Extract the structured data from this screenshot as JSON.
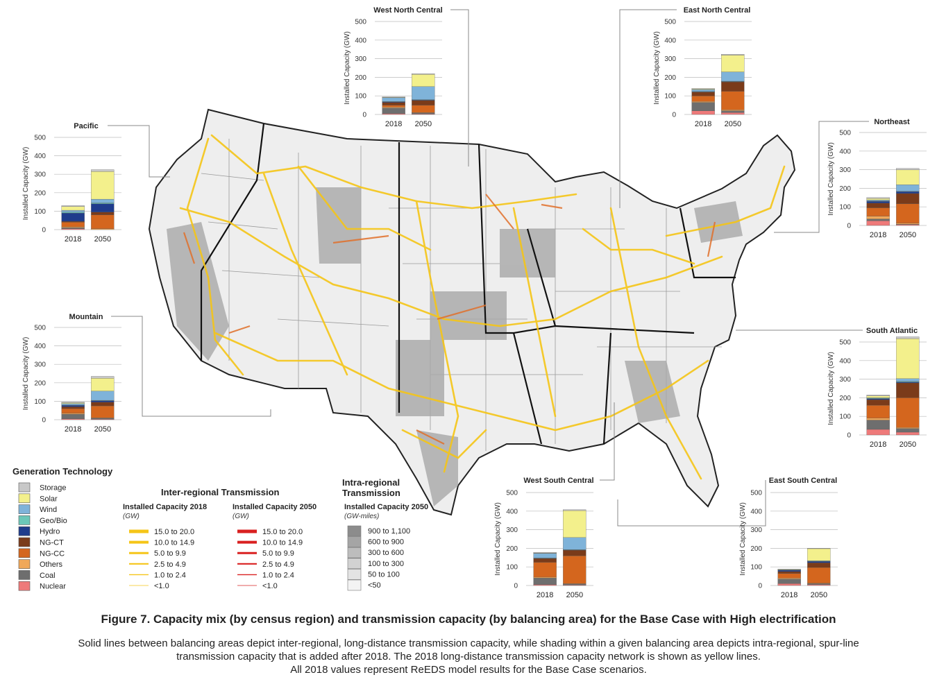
{
  "figure": {
    "title": "Figure 7. Capacity mix (by census region) and transmission capacity (by balancing area) for the Base Case with High electrification",
    "caption_lines": [
      "Solid lines between balancing areas depict inter-regional, long-distance transmission capacity, while shading within a given balancing area depicts intra-regional, spur-line",
      "transmission capacity that is added after 2018. The 2018 long-distance transmission capacity network is shown as yellow lines.",
      "All 2018 values represent ReEDS model results for the Base Case scenarios."
    ]
  },
  "colors": {
    "Storage": "#c8c8c8",
    "Solar": "#f3f08c",
    "Wind": "#7fb3d9",
    "Geo/Bio": "#6cc7b8",
    "Hydro": "#1f3c8c",
    "NG-CT": "#7a3b1a",
    "NG-CC": "#d4661e",
    "Others": "#f0a85a",
    "Coal": "#6e6e6e",
    "Nuclear": "#ee7a7a",
    "line2018": "#f5c518",
    "line2050": "#d92020"
  },
  "legend": {
    "title": "Generation Technology",
    "items": [
      "Storage",
      "Solar",
      "Wind",
      "Geo/Bio",
      "Hydro",
      "NG-CT",
      "NG-CC",
      "Others",
      "Coal",
      "Nuclear"
    ]
  },
  "inter_regional": {
    "title": "Inter-regional Transmission",
    "col2018": {
      "title": "Installed Capacity 2018",
      "unit": "(GW)"
    },
    "col2050": {
      "title": "Installed Capacity 2050",
      "unit": "(GW)"
    },
    "bins": [
      "15.0 to 20.0",
      "10.0 to 14.9",
      "5.0 to 9.9",
      "2.5 to 4.9",
      "1.0 to 2.4",
      "<1.0"
    ]
  },
  "intra_regional": {
    "title_line1": "Intra-regional",
    "title_line2": "Transmission",
    "subtitle": "Installed Capacity 2050",
    "unit": "(GW-miles)",
    "bins": [
      "900 to 1,100",
      "600 to 900",
      "300 to 600",
      "100 to 300",
      "50 to 100",
      "<50"
    ]
  },
  "chart_data": [
    {
      "type": "bar",
      "title": "Pacific",
      "ylabel": "Installed Capacity (GW)",
      "ylim": [
        0,
        500
      ],
      "yticks": [
        0,
        100,
        200,
        300,
        400,
        500
      ],
      "categories": [
        "2018",
        "2050"
      ],
      "series": [
        {
          "name": "Nuclear",
          "values": [
            5,
            0
          ]
        },
        {
          "name": "Coal",
          "values": [
            5,
            0
          ]
        },
        {
          "name": "Others",
          "values": [
            5,
            5
          ]
        },
        {
          "name": "NG-CC",
          "values": [
            25,
            75
          ]
        },
        {
          "name": "NG-CT",
          "values": [
            5,
            15
          ]
        },
        {
          "name": "Hydro",
          "values": [
            45,
            45
          ]
        },
        {
          "name": "Geo/Bio",
          "values": [
            5,
            5
          ]
        },
        {
          "name": "Wind",
          "values": [
            10,
            20
          ]
        },
        {
          "name": "Solar",
          "values": [
            20,
            150
          ]
        },
        {
          "name": "Storage",
          "values": [
            5,
            10
          ]
        }
      ]
    },
    {
      "type": "bar",
      "title": "Mountain",
      "ylabel": "Installed Capacity (GW)",
      "ylim": [
        0,
        500
      ],
      "yticks": [
        0,
        100,
        200,
        300,
        400,
        500
      ],
      "categories": [
        "2018",
        "2050"
      ],
      "series": [
        {
          "name": "Nuclear",
          "values": [
            5,
            3
          ]
        },
        {
          "name": "Coal",
          "values": [
            25,
            5
          ]
        },
        {
          "name": "Others",
          "values": [
            5,
            2
          ]
        },
        {
          "name": "NG-CC",
          "values": [
            25,
            65
          ]
        },
        {
          "name": "NG-CT",
          "values": [
            10,
            20
          ]
        },
        {
          "name": "Hydro",
          "values": [
            8,
            8
          ]
        },
        {
          "name": "Geo/Bio",
          "values": [
            2,
            2
          ]
        },
        {
          "name": "Wind",
          "values": [
            7,
            50
          ]
        },
        {
          "name": "Solar",
          "values": [
            5,
            70
          ]
        },
        {
          "name": "Storage",
          "values": [
            3,
            10
          ]
        }
      ]
    },
    {
      "type": "bar",
      "title": "West North Central",
      "ylabel": "Installed Capacity (GW)",
      "ylim": [
        0,
        500
      ],
      "yticks": [
        0,
        100,
        200,
        300,
        400,
        500
      ],
      "categories": [
        "2018",
        "2050"
      ],
      "series": [
        {
          "name": "Nuclear",
          "values": [
            5,
            3
          ]
        },
        {
          "name": "Coal",
          "values": [
            30,
            5
          ]
        },
        {
          "name": "Others",
          "values": [
            5,
            2
          ]
        },
        {
          "name": "NG-CC",
          "values": [
            10,
            40
          ]
        },
        {
          "name": "NG-CT",
          "values": [
            15,
            25
          ]
        },
        {
          "name": "Hydro",
          "values": [
            3,
            3
          ]
        },
        {
          "name": "Geo/Bio",
          "values": [
            2,
            2
          ]
        },
        {
          "name": "Wind",
          "values": [
            20,
            70
          ]
        },
        {
          "name": "Solar",
          "values": [
            2,
            65
          ]
        },
        {
          "name": "Storage",
          "values": [
            3,
            5
          ]
        }
      ]
    },
    {
      "type": "bar",
      "title": "East North Central",
      "ylabel": "Installed Capacity (GW)",
      "ylim": [
        0,
        500
      ],
      "yticks": [
        0,
        100,
        200,
        300,
        400,
        500
      ],
      "categories": [
        "2018",
        "2050"
      ],
      "series": [
        {
          "name": "Nuclear",
          "values": [
            20,
            10
          ]
        },
        {
          "name": "Coal",
          "values": [
            45,
            10
          ]
        },
        {
          "name": "Others",
          "values": [
            5,
            5
          ]
        },
        {
          "name": "NG-CC",
          "values": [
            30,
            100
          ]
        },
        {
          "name": "NG-CT",
          "values": [
            20,
            50
          ]
        },
        {
          "name": "Hydro",
          "values": [
            2,
            2
          ]
        },
        {
          "name": "Geo/Bio",
          "values": [
            2,
            2
          ]
        },
        {
          "name": "Wind",
          "values": [
            10,
            50
          ]
        },
        {
          "name": "Solar",
          "values": [
            3,
            90
          ]
        },
        {
          "name": "Storage",
          "values": [
            3,
            5
          ]
        }
      ]
    },
    {
      "type": "bar",
      "title": "Northeast",
      "ylabel": "Installed Capacity (GW)",
      "ylim": [
        0,
        500
      ],
      "yticks": [
        0,
        100,
        200,
        300,
        400,
        500
      ],
      "categories": [
        "2018",
        "2050"
      ],
      "series": [
        {
          "name": "Nuclear",
          "values": [
            25,
            5
          ]
        },
        {
          "name": "Coal",
          "values": [
            10,
            2
          ]
        },
        {
          "name": "Others",
          "values": [
            15,
            5
          ]
        },
        {
          "name": "NG-CC",
          "values": [
            45,
            105
          ]
        },
        {
          "name": "NG-CT",
          "values": [
            25,
            55
          ]
        },
        {
          "name": "Hydro",
          "values": [
            10,
            10
          ]
        },
        {
          "name": "Geo/Bio",
          "values": [
            2,
            2
          ]
        },
        {
          "name": "Wind",
          "values": [
            5,
            35
          ]
        },
        {
          "name": "Solar",
          "values": [
            8,
            80
          ]
        },
        {
          "name": "Storage",
          "values": [
            5,
            8
          ]
        }
      ]
    },
    {
      "type": "bar",
      "title": "South Atlantic",
      "ylabel": "Installed Capacity (GW)",
      "ylim": [
        0,
        500
      ],
      "yticks": [
        0,
        100,
        200,
        300,
        400,
        500
      ],
      "categories": [
        "2018",
        "2050"
      ],
      "series": [
        {
          "name": "Nuclear",
          "values": [
            30,
            15
          ]
        },
        {
          "name": "Coal",
          "values": [
            50,
            20
          ]
        },
        {
          "name": "Others",
          "values": [
            10,
            5
          ]
        },
        {
          "name": "NG-CC",
          "values": [
            70,
            160
          ]
        },
        {
          "name": "NG-CT",
          "values": [
            30,
            80
          ]
        },
        {
          "name": "Hydro",
          "values": [
            5,
            5
          ]
        },
        {
          "name": "Geo/Bio",
          "values": [
            3,
            3
          ]
        },
        {
          "name": "Wind",
          "values": [
            2,
            15
          ]
        },
        {
          "name": "Solar",
          "values": [
            10,
            215
          ]
        },
        {
          "name": "Storage",
          "values": [
            5,
            10
          ]
        }
      ]
    },
    {
      "type": "bar",
      "title": "West South Central",
      "ylabel": "Installed Capacity (GW)",
      "ylim": [
        0,
        500
      ],
      "yticks": [
        0,
        100,
        200,
        300,
        400,
        500
      ],
      "categories": [
        "2018",
        "2050"
      ],
      "series": [
        {
          "name": "Nuclear",
          "values": [
            5,
            3
          ]
        },
        {
          "name": "Coal",
          "values": [
            35,
            5
          ]
        },
        {
          "name": "Others",
          "values": [
            5,
            2
          ]
        },
        {
          "name": "NG-CC",
          "values": [
            80,
            150
          ]
        },
        {
          "name": "NG-CT",
          "values": [
            20,
            30
          ]
        },
        {
          "name": "Hydro",
          "values": [
            2,
            2
          ]
        },
        {
          "name": "Geo/Bio",
          "values": [
            1,
            1
          ]
        },
        {
          "name": "Wind",
          "values": [
            25,
            65
          ]
        },
        {
          "name": "Solar",
          "values": [
            2,
            145
          ]
        },
        {
          "name": "Storage",
          "values": [
            3,
            5
          ]
        }
      ]
    },
    {
      "type": "bar",
      "title": "East South Central",
      "ylabel": "Installed Capacity (GW)",
      "ylim": [
        0,
        500
      ],
      "yticks": [
        0,
        100,
        200,
        300,
        400,
        500
      ],
      "categories": [
        "2018",
        "2050"
      ],
      "series": [
        {
          "name": "Nuclear",
          "values": [
            10,
            5
          ]
        },
        {
          "name": "Coal",
          "values": [
            25,
            5
          ]
        },
        {
          "name": "Others",
          "values": [
            5,
            2
          ]
        },
        {
          "name": "NG-CC",
          "values": [
            25,
            85
          ]
        },
        {
          "name": "NG-CT",
          "values": [
            10,
            25
          ]
        },
        {
          "name": "Hydro",
          "values": [
            8,
            8
          ]
        },
        {
          "name": "Geo/Bio",
          "values": [
            1,
            1
          ]
        },
        {
          "name": "Wind",
          "values": [
            0,
            2
          ]
        },
        {
          "name": "Solar",
          "values": [
            2,
            65
          ]
        },
        {
          "name": "Storage",
          "values": [
            2,
            2
          ]
        }
      ]
    }
  ]
}
